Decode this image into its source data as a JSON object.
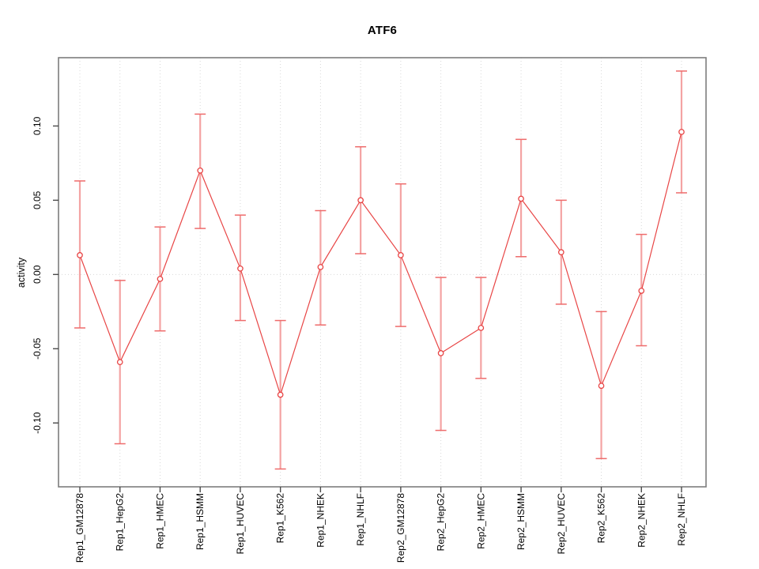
{
  "colors": {
    "series_red": "#e84545",
    "errorbar_pink": "#f4a3a3",
    "errorbar_cap": "#ee6b6b",
    "grid_gray": "#d8d8d8",
    "box_gray": "#7d7d7d",
    "tick_gray": "#4a4a4a",
    "label_black": "#000000",
    "point_fill": "#ffffff"
  },
  "chart_data": {
    "type": "line",
    "title": "ATF6",
    "xlabel": "",
    "ylabel": "activity",
    "legend": "none",
    "grid": "dotted vertical gridline per category; dotted horizontal line at y=0",
    "tick_label_orientation": "vertical",
    "ylim": [
      -0.143,
      0.146
    ],
    "ytick_labels": [
      "0.10",
      "0.05",
      "0.00",
      "-0.05",
      "-0.10"
    ],
    "ytick_values": [
      0.1,
      0.05,
      0.0,
      -0.05,
      -0.1
    ],
    "categories": [
      "Rep1_GM12878",
      "Rep1_HepG2",
      "Rep1_HMEC",
      "Rep1_HSMM",
      "Rep1_HUVEC",
      "Rep1_K562",
      "Rep1_NHEK",
      "Rep1_NHLF",
      "Rep2_GM12878",
      "Rep2_HepG2",
      "Rep2_HMEC",
      "Rep2_HSMM",
      "Rep2_HUVEC",
      "Rep2_K562",
      "Rep2_NHEK",
      "Rep2_NHLF"
    ],
    "series": [
      {
        "name": "activity",
        "values": [
          0.013,
          -0.059,
          -0.003,
          0.07,
          0.004,
          -0.081,
          0.005,
          0.05,
          0.013,
          -0.053,
          -0.036,
          0.051,
          0.015,
          -0.075,
          -0.011,
          0.096
        ],
        "error_upper": [
          0.063,
          -0.004,
          0.032,
          0.108,
          0.04,
          -0.031,
          0.043,
          0.086,
          0.061,
          -0.002,
          -0.002,
          0.091,
          0.05,
          -0.025,
          0.027,
          0.137
        ],
        "error_lower": [
          -0.036,
          -0.114,
          -0.038,
          0.031,
          -0.031,
          -0.131,
          -0.034,
          0.014,
          -0.035,
          -0.105,
          -0.07,
          0.012,
          -0.02,
          -0.124,
          -0.048,
          0.055
        ]
      }
    ]
  }
}
